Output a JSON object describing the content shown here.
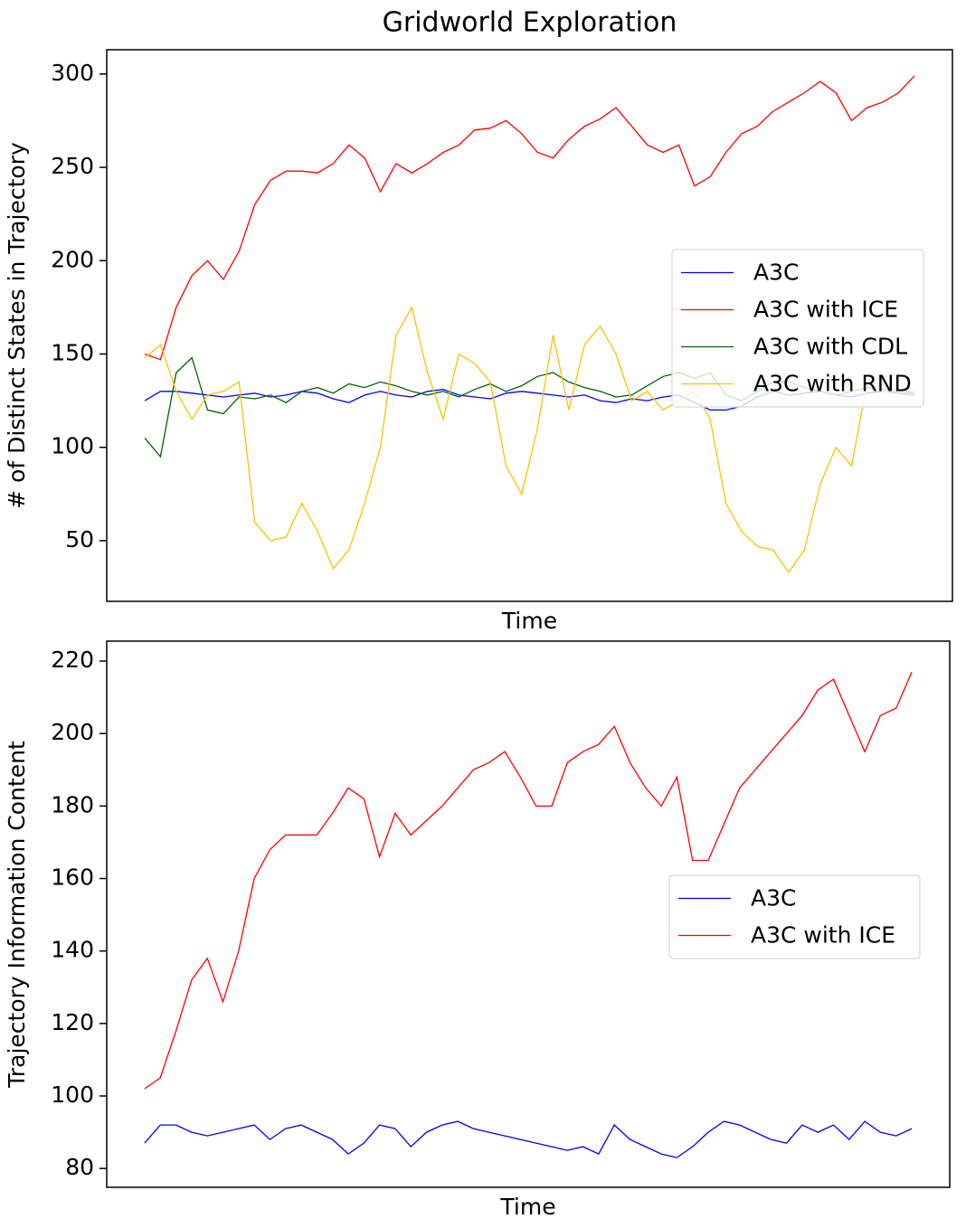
{
  "chart_data": [
    {
      "type": "line",
      "title": "Gridworld Exploration",
      "xlabel": "Time",
      "ylabel": "# of Distinct States in Trajectory",
      "ylim": [
        17.5,
        313
      ],
      "yticks": [
        50,
        100,
        150,
        200,
        250,
        300
      ],
      "legend": "center right",
      "series": [
        {
          "name": "A3C",
          "color": "#0000ff",
          "values": [
            125,
            130,
            130,
            129,
            128,
            127,
            128,
            129,
            127,
            128,
            130,
            129,
            126,
            124,
            128,
            130,
            128,
            127,
            130,
            131,
            128,
            127,
            126,
            129,
            130,
            129,
            128,
            127,
            128,
            125,
            124,
            126,
            125,
            127,
            128,
            124,
            120,
            120,
            122,
            127,
            130,
            128,
            129,
            130,
            128,
            127,
            129,
            130,
            129,
            128
          ]
        },
        {
          "name": "A3C with ICE",
          "color": "#ff0000",
          "values": [
            150,
            147,
            175,
            192,
            200,
            190,
            205,
            230,
            243,
            248,
            248,
            247,
            252,
            262,
            255,
            237,
            252,
            247,
            252,
            258,
            262,
            270,
            271,
            275,
            268,
            258,
            255,
            265,
            272,
            276,
            282,
            272,
            262,
            258,
            262,
            240,
            245,
            258,
            268,
            272,
            280,
            285,
            290,
            296,
            290,
            275,
            282,
            285,
            290,
            299
          ]
        },
        {
          "name": "A3C with CDL",
          "color": "#006400",
          "values": [
            105,
            95,
            140,
            148,
            120,
            118,
            127,
            126,
            128,
            124,
            130,
            132,
            129,
            134,
            132,
            135,
            133,
            130,
            128,
            130,
            127,
            131,
            134,
            130,
            133,
            138,
            140,
            135,
            132,
            130,
            127,
            128,
            133,
            138,
            140,
            137,
            140,
            128,
            125,
            130,
            135,
            135,
            132,
            130,
            128,
            130,
            132,
            131,
            130,
            129
          ]
        },
        {
          "name": "A3C with RND",
          "color": "#ffc000",
          "values": [
            148,
            155,
            130,
            115,
            128,
            130,
            135,
            60,
            50,
            52,
            70,
            55,
            35,
            45,
            70,
            100,
            160,
            175,
            140,
            115,
            150,
            145,
            135,
            90,
            75,
            110,
            160,
            120,
            155,
            165,
            150,
            125,
            130,
            120,
            125,
            130,
            115,
            70,
            55,
            47,
            45,
            33,
            45,
            80,
            100,
            90,
            135,
            130,
            130,
            130
          ]
        }
      ]
    },
    {
      "type": "line",
      "xlabel": "Time",
      "ylabel": "Trajectory Information Content",
      "ylim": [
        74.8,
        225.5
      ],
      "yticks": [
        80,
        100,
        120,
        140,
        160,
        180,
        200,
        220
      ],
      "legend": "center right",
      "series": [
        {
          "name": "A3C",
          "color": "#0000ff",
          "values": [
            87,
            92,
            92,
            90,
            89,
            90,
            91,
            92,
            88,
            91,
            92,
            90,
            88,
            84,
            87,
            92,
            91,
            86,
            90,
            92,
            93,
            91,
            90,
            89,
            88,
            87,
            86,
            85,
            86,
            84,
            92,
            88,
            86,
            84,
            83,
            86,
            90,
            93,
            92,
            90,
            88,
            87,
            92,
            90,
            92,
            88,
            93,
            90,
            89,
            91
          ]
        },
        {
          "name": "A3C with ICE",
          "color": "#ff0000",
          "values": [
            102,
            105,
            118,
            132,
            138,
            126,
            140,
            160,
            168,
            172,
            172,
            172,
            178,
            185,
            182,
            166,
            178,
            172,
            176,
            180,
            185,
            190,
            192,
            195,
            188,
            180,
            180,
            192,
            195,
            197,
            202,
            192,
            185,
            180,
            188,
            165,
            165,
            175,
            185,
            190,
            195,
            200,
            205,
            212,
            215,
            205,
            195,
            205,
            207,
            217
          ]
        }
      ]
    }
  ]
}
